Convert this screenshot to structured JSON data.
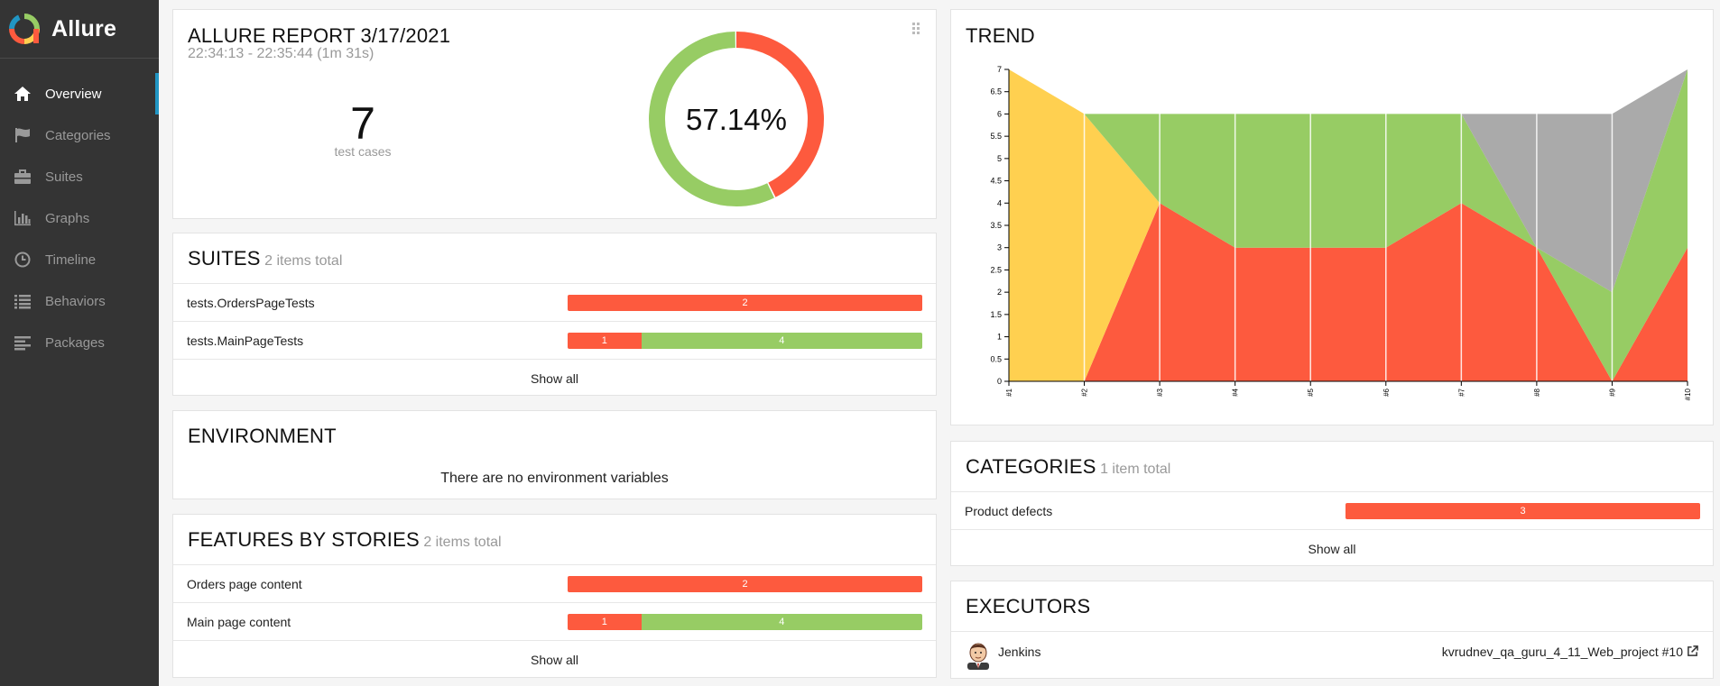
{
  "app": {
    "name": "Allure"
  },
  "sidebar": {
    "items": [
      {
        "label": "Overview",
        "icon": "home-icon",
        "active": true
      },
      {
        "label": "Categories",
        "icon": "flag-icon",
        "active": false
      },
      {
        "label": "Suites",
        "icon": "briefcase-icon",
        "active": false
      },
      {
        "label": "Graphs",
        "icon": "bar-chart-icon",
        "active": false
      },
      {
        "label": "Timeline",
        "icon": "clock-icon",
        "active": false
      },
      {
        "label": "Behaviors",
        "icon": "list-icon",
        "active": false
      },
      {
        "label": "Packages",
        "icon": "align-left-icon",
        "active": false
      }
    ]
  },
  "summary": {
    "title": "ALLURE REPORT 3/17/2021",
    "time_range": "22:34:13 - 22:35:44 (1m 31s)",
    "test_count": "7",
    "test_count_label": "test cases",
    "success_rate": "57.14%",
    "passed": 4,
    "failed": 3
  },
  "suites": {
    "title": "SUITES",
    "total": "2 items total",
    "rows": [
      {
        "name": "tests.OrdersPageTests",
        "failed": "2",
        "passed": ""
      },
      {
        "name": "tests.MainPageTests",
        "failed": "1",
        "passed": "4"
      }
    ],
    "show_all": "Show all"
  },
  "environment": {
    "title": "ENVIRONMENT",
    "empty_text": "There are no environment variables"
  },
  "features": {
    "title": "FEATURES BY STORIES",
    "total": "2 items total",
    "rows": [
      {
        "name": "Orders page content",
        "failed": "2",
        "passed": ""
      },
      {
        "name": "Main page content",
        "failed": "1",
        "passed": "4"
      }
    ],
    "show_all": "Show all"
  },
  "trend": {
    "title": "TREND"
  },
  "categories": {
    "title": "CATEGORIES",
    "total": "1 item total",
    "rows": [
      {
        "name": "Product defects",
        "count": "3"
      }
    ],
    "show_all": "Show all"
  },
  "executors": {
    "title": "EXECUTORS",
    "name": "Jenkins",
    "build": "kvrudnev_qa_guru_4_11_Web_project #10"
  },
  "colors": {
    "failed": "#fd5a3e",
    "passed": "#97cc64",
    "broken": "#ffd050",
    "unknown": "#aaaaaa",
    "accent": "#2196c4"
  },
  "chart_data": {
    "type": "area",
    "title": "TREND",
    "x": [
      "#1",
      "#2",
      "#3",
      "#4",
      "#5",
      "#6",
      "#7",
      "#8",
      "#9",
      "#10"
    ],
    "ylim": [
      0,
      7
    ],
    "yticks": [
      "0",
      "0.5",
      "1",
      "1.5",
      "2",
      "2.5",
      "3",
      "3.5",
      "4",
      "4.5",
      "5",
      "5.5",
      "6",
      "6.5",
      "7"
    ],
    "series": [
      {
        "name": "failed",
        "values": [
          0,
          0,
          4,
          3,
          3,
          3,
          4,
          3,
          0,
          3
        ]
      },
      {
        "name": "broken",
        "values": [
          7,
          6,
          0,
          0,
          0,
          0,
          0,
          0,
          0,
          0
        ]
      },
      {
        "name": "passed",
        "values": [
          0,
          0,
          2,
          3,
          3,
          3,
          2,
          0,
          2,
          4
        ]
      },
      {
        "name": "unknown",
        "values": [
          0,
          0,
          0,
          0,
          0,
          0,
          0,
          3,
          4,
          0
        ]
      }
    ]
  }
}
